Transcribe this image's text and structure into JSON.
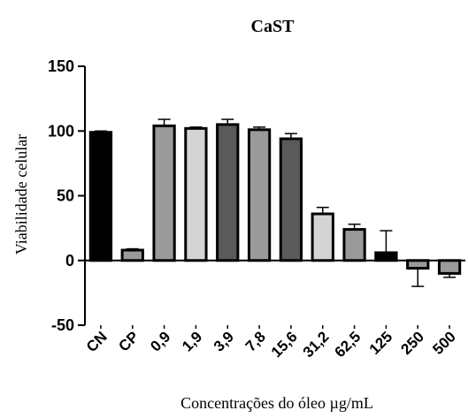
{
  "chart_data": {
    "type": "bar",
    "title": "CaST",
    "xlabel": "Concentrações do óleo µg/mL",
    "ylabel": "Viabilidade celular",
    "ylim": [
      -50,
      150
    ],
    "yticks": [
      -50,
      0,
      50,
      100,
      150
    ],
    "categories": [
      "CN",
      "CP",
      "0,9",
      "1,9",
      "3,9",
      "7,8",
      "15,6",
      "31,2",
      "62,5",
      "125",
      "250",
      "500"
    ],
    "values": [
      99,
      8,
      104,
      102,
      105,
      101,
      94,
      36,
      24,
      6,
      -6,
      -10
    ],
    "errors": [
      1,
      1,
      5,
      1,
      4,
      2,
      4,
      5,
      4,
      17,
      14,
      3
    ],
    "colors": [
      "#000000",
      "#9a9a9a",
      "#9a9a9a",
      "#d4d4d4",
      "#5a5a5a",
      "#9a9a9a",
      "#5a5a5a",
      "#d4d4d4",
      "#9a9a9a",
      "#000000",
      "#9a9a9a",
      "#9a9a9a"
    ]
  }
}
